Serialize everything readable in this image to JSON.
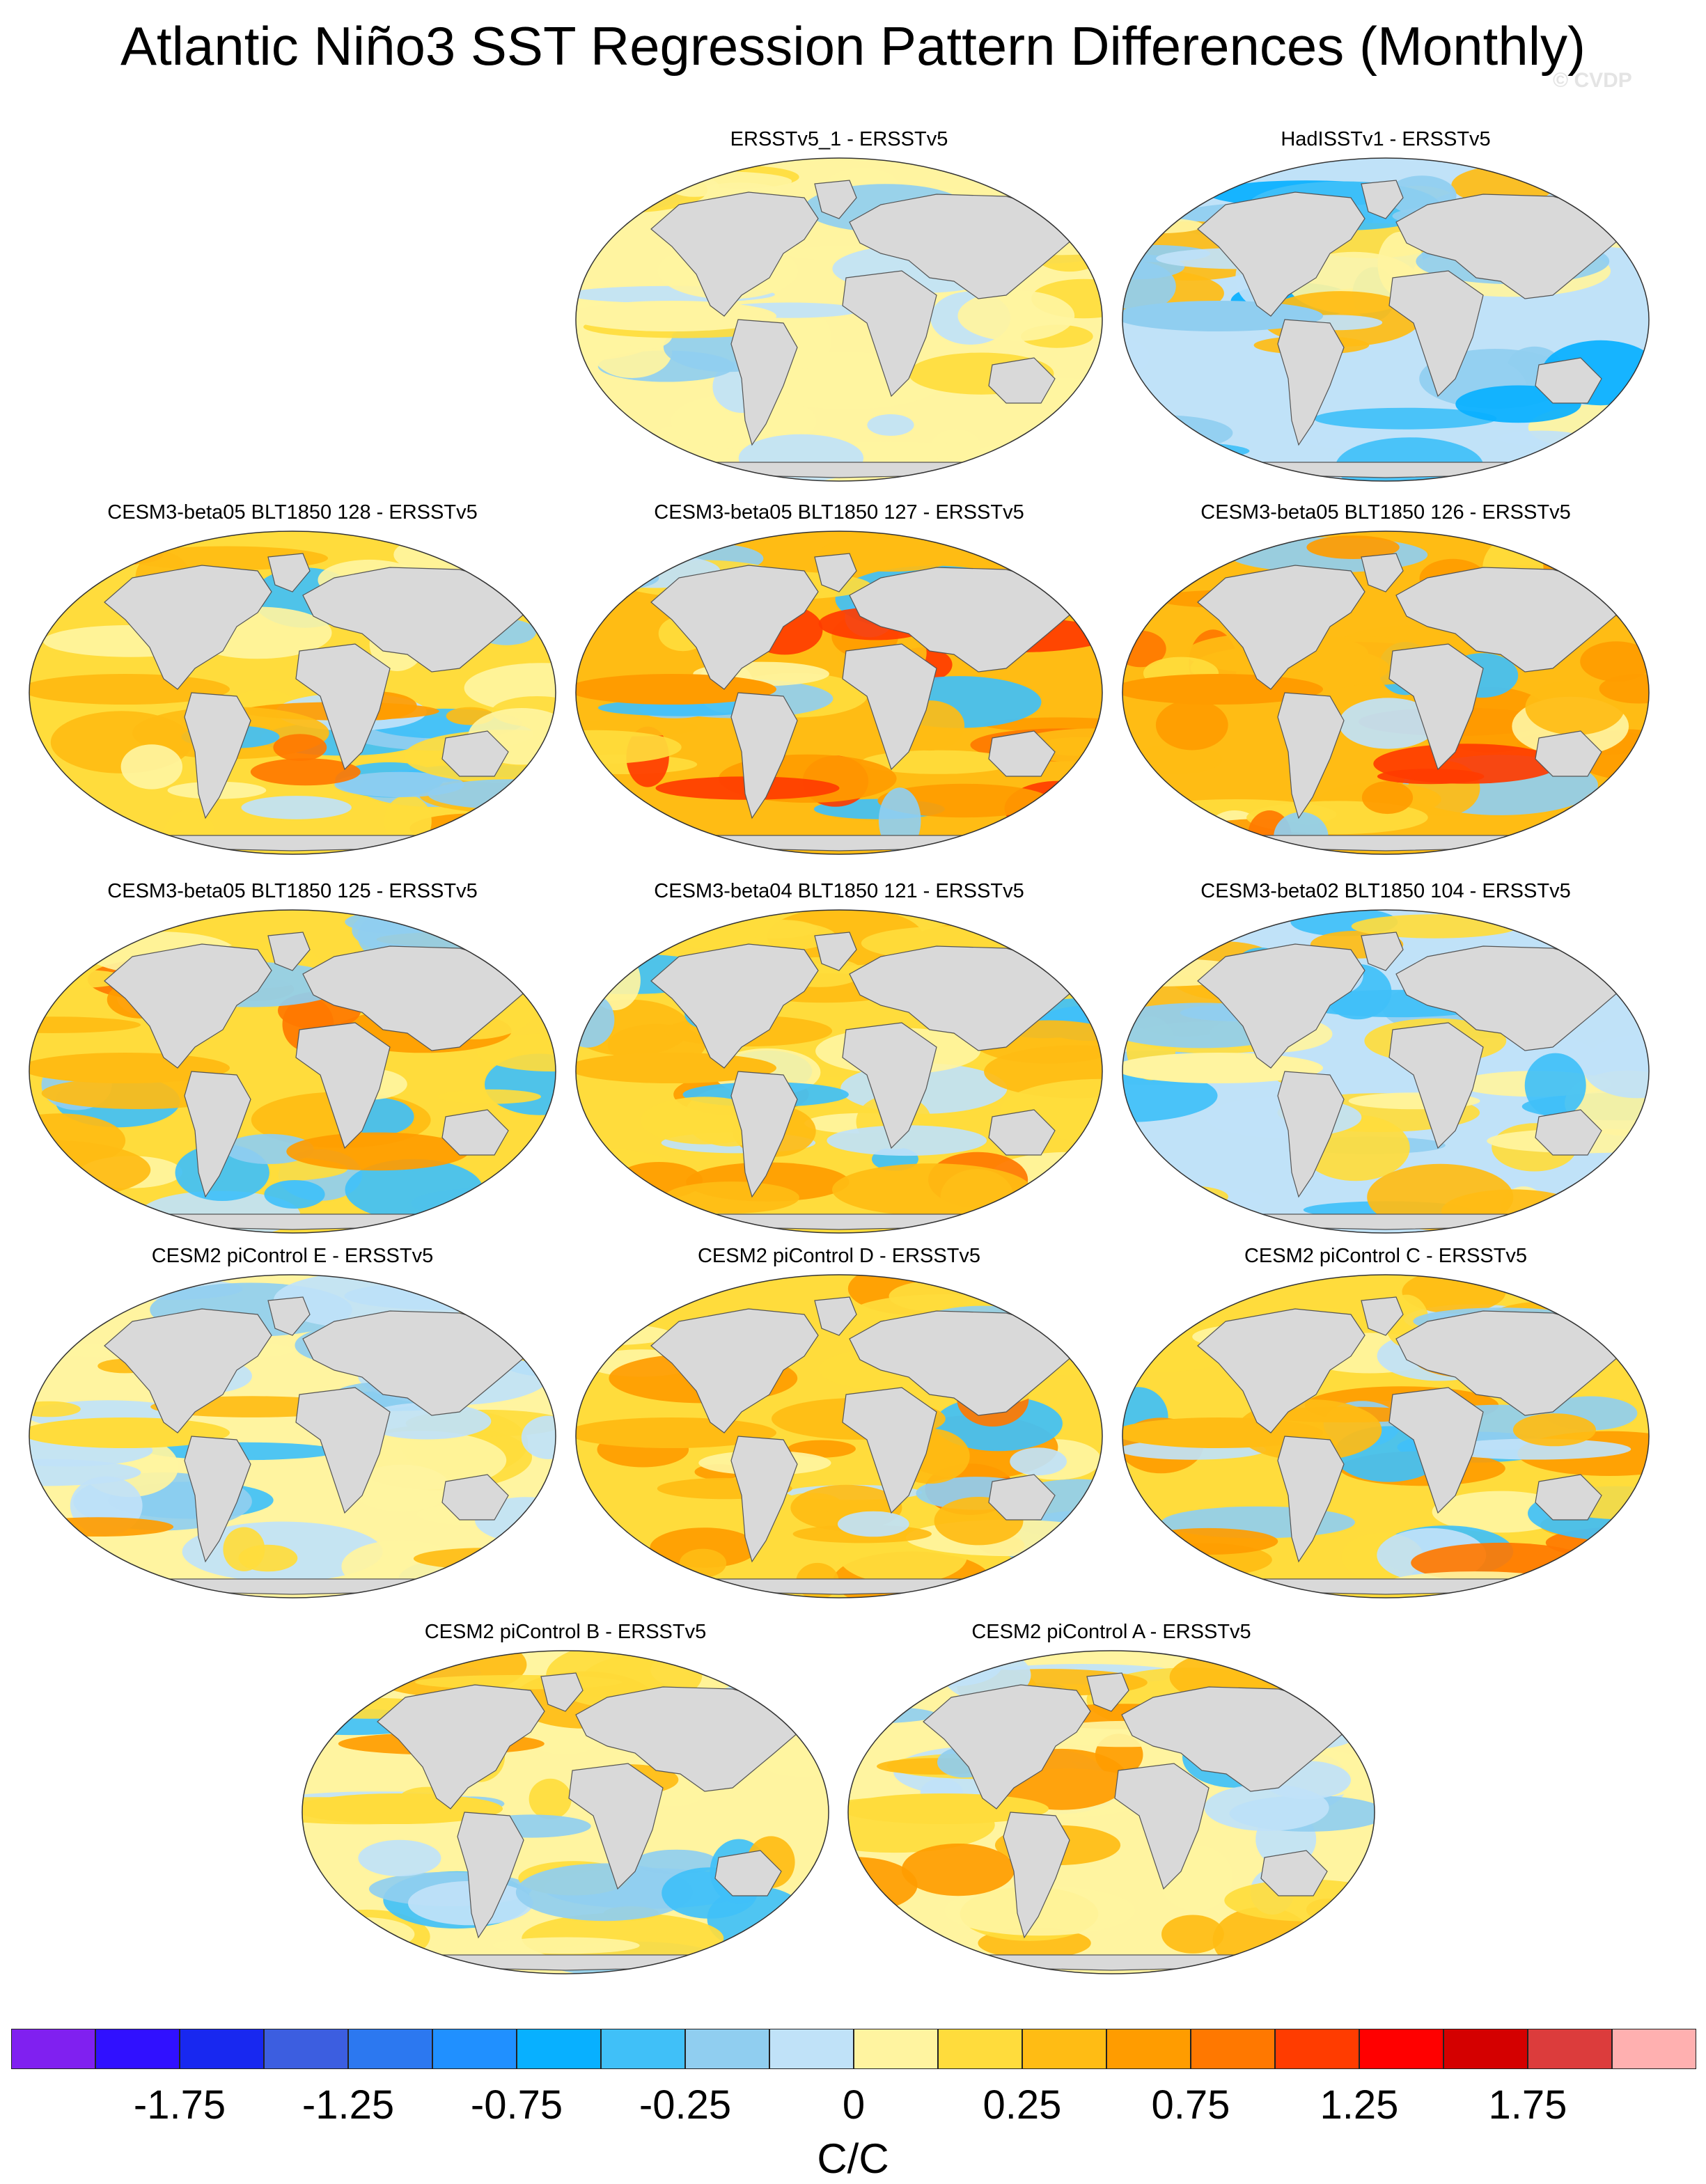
{
  "title": "Atlantic Niño3 SST Regression Pattern Differences (Monthly)",
  "watermark": "© CVDP",
  "panels": [
    {
      "title": "ERSSTv5_1 - ERSSTv5",
      "palette": "pale",
      "seed": 3
    },
    {
      "title": "HadISSTv1 - ERSSTv5",
      "palette": "blue",
      "seed": 7
    },
    {
      "title": "CESM3-beta05 BLT1850 128 - ERSSTv5",
      "palette": "warm",
      "seed": 11
    },
    {
      "title": "CESM3-beta05 BLT1850 127 - ERSSTv5",
      "palette": "hot",
      "seed": 13
    },
    {
      "title": "CESM3-beta05 BLT1850 126 - ERSSTv5",
      "palette": "hot",
      "seed": 17
    },
    {
      "title": "CESM3-beta05 BLT1850 125 - ERSSTv5",
      "palette": "warm",
      "seed": 19
    },
    {
      "title": "CESM3-beta04 BLT1850 121 - ERSSTv5",
      "palette": "warm",
      "seed": 23
    },
    {
      "title": "CESM3-beta02 BLT1850 104 - ERSSTv5",
      "palette": "cool",
      "seed": 29
    },
    {
      "title": "CESM2 piControl E - ERSSTv5",
      "palette": "mixed",
      "seed": 31
    },
    {
      "title": "CESM2 piControl D - ERSSTv5",
      "palette": "warm",
      "seed": 37
    },
    {
      "title": "CESM2 piControl C - ERSSTv5",
      "palette": "warm",
      "seed": 41
    },
    {
      "title": "CESM2 piControl B - ERSSTv5",
      "palette": "mixed",
      "seed": 43
    },
    {
      "title": "CESM2 piControl A - ERSSTv5",
      "palette": "mixed",
      "seed": 47
    }
  ],
  "colorbar": {
    "colors": [
      "#8020f0",
      "#3010ff",
      "#1828f0",
      "#3c5ee0",
      "#2c78f0",
      "#2090ff",
      "#08b0ff",
      "#40c0f8",
      "#90cef0",
      "#c0e2f8",
      "#fff4a0",
      "#ffdc3c",
      "#ffbc14",
      "#ff9c00",
      "#ff7800",
      "#ff3c00",
      "#ff0000",
      "#d40000",
      "#dc3c3c",
      "#ffb0b0"
    ],
    "labels": [
      "-1.75",
      "-1.25",
      "-0.75",
      "-0.25",
      "0",
      "0.25",
      "0.75",
      "1.25",
      "1.75"
    ],
    "units": "C/C"
  }
}
